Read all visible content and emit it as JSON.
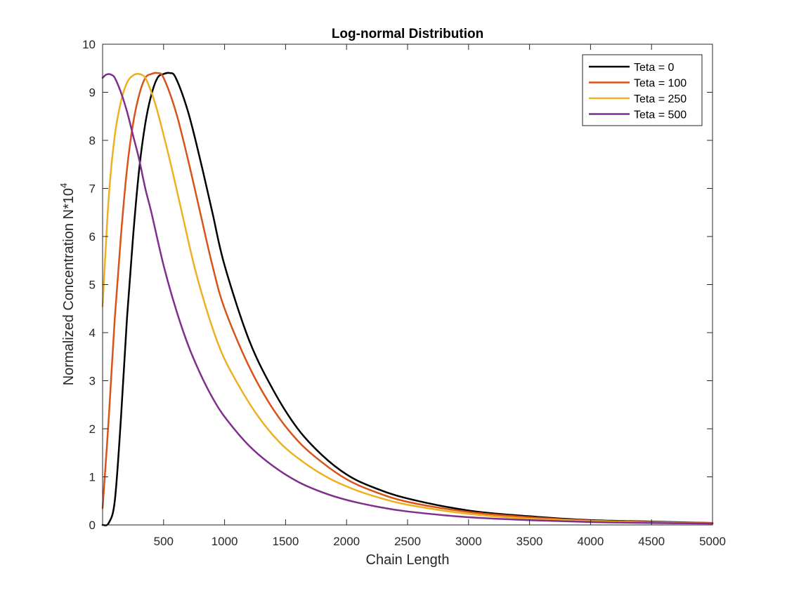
{
  "chart_data": {
    "type": "line",
    "title": "Log-normal Distribution",
    "xlabel": "Chain Length",
    "ylabel_main": "Normalized Concentration N*10",
    "ylabel_sup": "4",
    "xlim": [
      0,
      5000
    ],
    "ylim": [
      0,
      10
    ],
    "xticks": [
      500,
      1000,
      1500,
      2000,
      2500,
      3000,
      3500,
      4000,
      4500,
      5000
    ],
    "yticks": [
      0,
      1,
      2,
      3,
      4,
      5,
      6,
      7,
      8,
      9,
      10
    ],
    "grid": false,
    "legend_position": "top-right",
    "series": [
      {
        "name": "Teta = 0",
        "color": "#000000",
        "x": [
          0,
          50,
          100,
          150,
          200,
          250,
          300,
          350,
          400,
          450,
          500,
          550,
          600,
          700,
          800,
          900,
          1000,
          1200,
          1400,
          1600,
          1800,
          2000,
          2200,
          2500,
          3000,
          3500,
          4000,
          4500,
          5000
        ],
        "y": [
          0.0,
          0.04,
          0.5,
          2.2,
          4.3,
          6.0,
          7.4,
          8.35,
          8.95,
          9.3,
          9.38,
          9.4,
          9.3,
          8.6,
          7.6,
          6.5,
          5.4,
          3.85,
          2.8,
          2.0,
          1.45,
          1.05,
          0.8,
          0.55,
          0.3,
          0.18,
          0.1,
          0.07,
          0.04
        ]
      },
      {
        "name": "Teta = 100",
        "color": "#d95319",
        "x": [
          0,
          50,
          100,
          150,
          200,
          250,
          300,
          350,
          400,
          450,
          500,
          600,
          700,
          800,
          900,
          1000,
          1200,
          1400,
          1600,
          1800,
          2000,
          2200,
          2500,
          3000,
          3500,
          4000,
          4500,
          5000
        ],
        "y": [
          0.35,
          2.2,
          4.3,
          6.0,
          7.4,
          8.35,
          8.95,
          9.3,
          9.38,
          9.4,
          9.3,
          8.6,
          7.6,
          6.5,
          5.4,
          4.5,
          3.3,
          2.4,
          1.75,
          1.3,
          0.95,
          0.72,
          0.48,
          0.27,
          0.16,
          0.09,
          0.06,
          0.04
        ]
      },
      {
        "name": "Teta = 250",
        "color": "#edb120",
        "x": [
          0,
          50,
          100,
          150,
          200,
          250,
          300,
          350,
          400,
          450,
          550,
          650,
          750,
          850,
          950,
          1050,
          1250,
          1450,
          1650,
          1850,
          2050,
          2250,
          2500,
          3000,
          3500,
          4000,
          4500,
          5000
        ],
        "y": [
          4.55,
          6.8,
          8.1,
          8.8,
          9.2,
          9.35,
          9.38,
          9.3,
          9.0,
          8.6,
          7.6,
          6.5,
          5.4,
          4.5,
          3.75,
          3.2,
          2.35,
          1.72,
          1.3,
          0.98,
          0.75,
          0.58,
          0.42,
          0.23,
          0.13,
          0.08,
          0.05,
          0.03
        ]
      },
      {
        "name": "Teta = 500",
        "color": "#7e2f8e",
        "x": [
          0,
          25,
          50,
          75,
          100,
          150,
          200,
          250,
          300,
          350,
          400,
          500,
          600,
          700,
          800,
          900,
          1000,
          1200,
          1400,
          1600,
          1800,
          2000,
          2250,
          2500,
          3000,
          3500,
          4000,
          4500,
          5000
        ],
        "y": [
          9.3,
          9.36,
          9.38,
          9.36,
          9.3,
          9.0,
          8.6,
          8.1,
          7.6,
          7.0,
          6.5,
          5.4,
          4.5,
          3.75,
          3.15,
          2.65,
          2.25,
          1.65,
          1.22,
          0.9,
          0.68,
          0.52,
          0.38,
          0.28,
          0.16,
          0.1,
          0.06,
          0.04,
          0.03
        ]
      }
    ]
  }
}
